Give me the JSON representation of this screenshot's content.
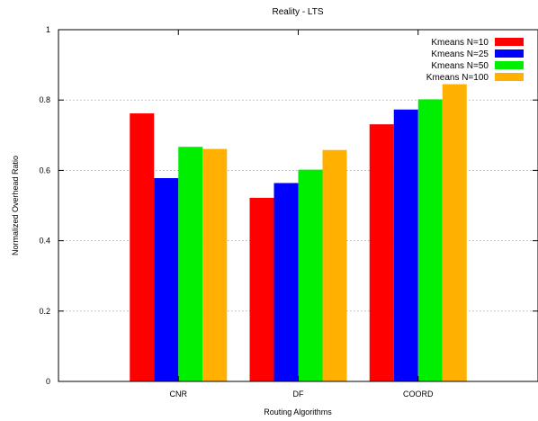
{
  "chart_data": {
    "type": "bar",
    "title": "Reality - LTS",
    "xlabel": "Routing Algorithms",
    "ylabel": "Normalized Overhead Ratio",
    "categories": [
      "CNR",
      "DF",
      "COORD"
    ],
    "ylim": [
      0,
      1
    ],
    "yticks": [
      "0",
      "0.2",
      "0.4",
      "0.6",
      "0.8",
      "1"
    ],
    "grid": true,
    "legend_position": "top-right",
    "series": [
      {
        "name": "Kmeans N=10",
        "color": "#ff0000",
        "values": [
          0.762,
          0.522,
          0.731
        ]
      },
      {
        "name": "Kmeans N=25",
        "color": "#0000ff",
        "values": [
          0.578,
          0.564,
          0.773
        ]
      },
      {
        "name": "Kmeans N=50",
        "color": "#00ee00",
        "values": [
          0.667,
          0.602,
          0.802
        ]
      },
      {
        "name": "Kmeans N=100",
        "color": "#ffb000",
        "values": [
          0.661,
          0.658,
          0.845
        ]
      }
    ]
  }
}
